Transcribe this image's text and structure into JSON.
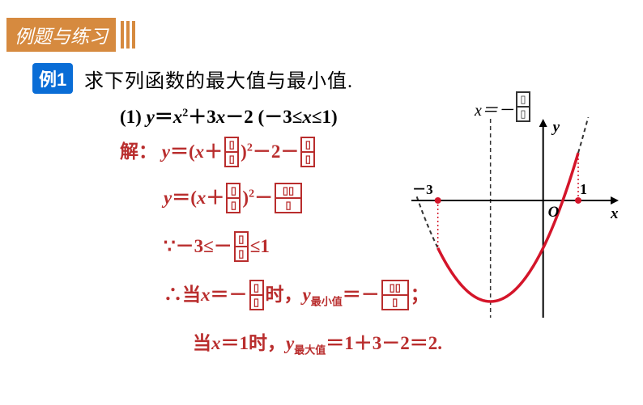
{
  "header": {
    "title": "例题与练习"
  },
  "example": {
    "label": "例1",
    "prompt": "求下列函数的最大值与最小值."
  },
  "problem": {
    "index": "(1)",
    "body_parts": {
      "y": "y",
      "eq": "＝",
      "x": "x",
      "sq": "2",
      "plus": "＋",
      "coef": "3",
      "minus": "－",
      "c": "2",
      "lp": "(",
      "neg": "－3",
      "le": "≤",
      "rp": "1)"
    }
  },
  "graph": {
    "vertex_label_prefix": "x＝－",
    "y_label": "y",
    "x_label": "x",
    "origin": "O",
    "left_tick": "－3",
    "right_tick": "1",
    "curve_color": "#d4152a",
    "axis_color": "#000000",
    "dash_color": "#333333",
    "dot_color": "#d4152a",
    "xlim": [
      -3.8,
      2.2
    ],
    "ylim": [
      -5,
      3.5
    ],
    "axis_style": {
      "stroke_width": 2
    },
    "curve_style": {
      "stroke_width": 3.5
    },
    "background": "#ffffff"
  },
  "lines": {
    "l1": {
      "pre": "解：",
      "y": "y",
      "eq": "＝(",
      "x": "x",
      "plus": "＋",
      "rp": ")",
      "sq": "2",
      "minus2": "－2－"
    },
    "l2": {
      "y": "y",
      "eq": "＝(",
      "x": "x",
      "plus": "＋",
      "rp": ")",
      "sq": "2",
      "minus": "－"
    },
    "l3": {
      "because": "∵－3≤－",
      "tail": "≤1"
    },
    "l4": {
      "therefore": "∴当",
      "x": "x",
      "eqneg": "＝－",
      "shi": "时，",
      "y": "y",
      "sub": "最小值",
      "eqneg2": "＝－",
      "semi": "；"
    },
    "l5": {
      "dang": "当",
      "x": "x",
      "eq1": "＝1时，",
      "y": "y",
      "sub": "最大值",
      "rhs": "＝1＋3－2＝2."
    }
  },
  "boxed": {
    "glyph_narrow": "▯",
    "glyph_wide": "▯▯"
  }
}
